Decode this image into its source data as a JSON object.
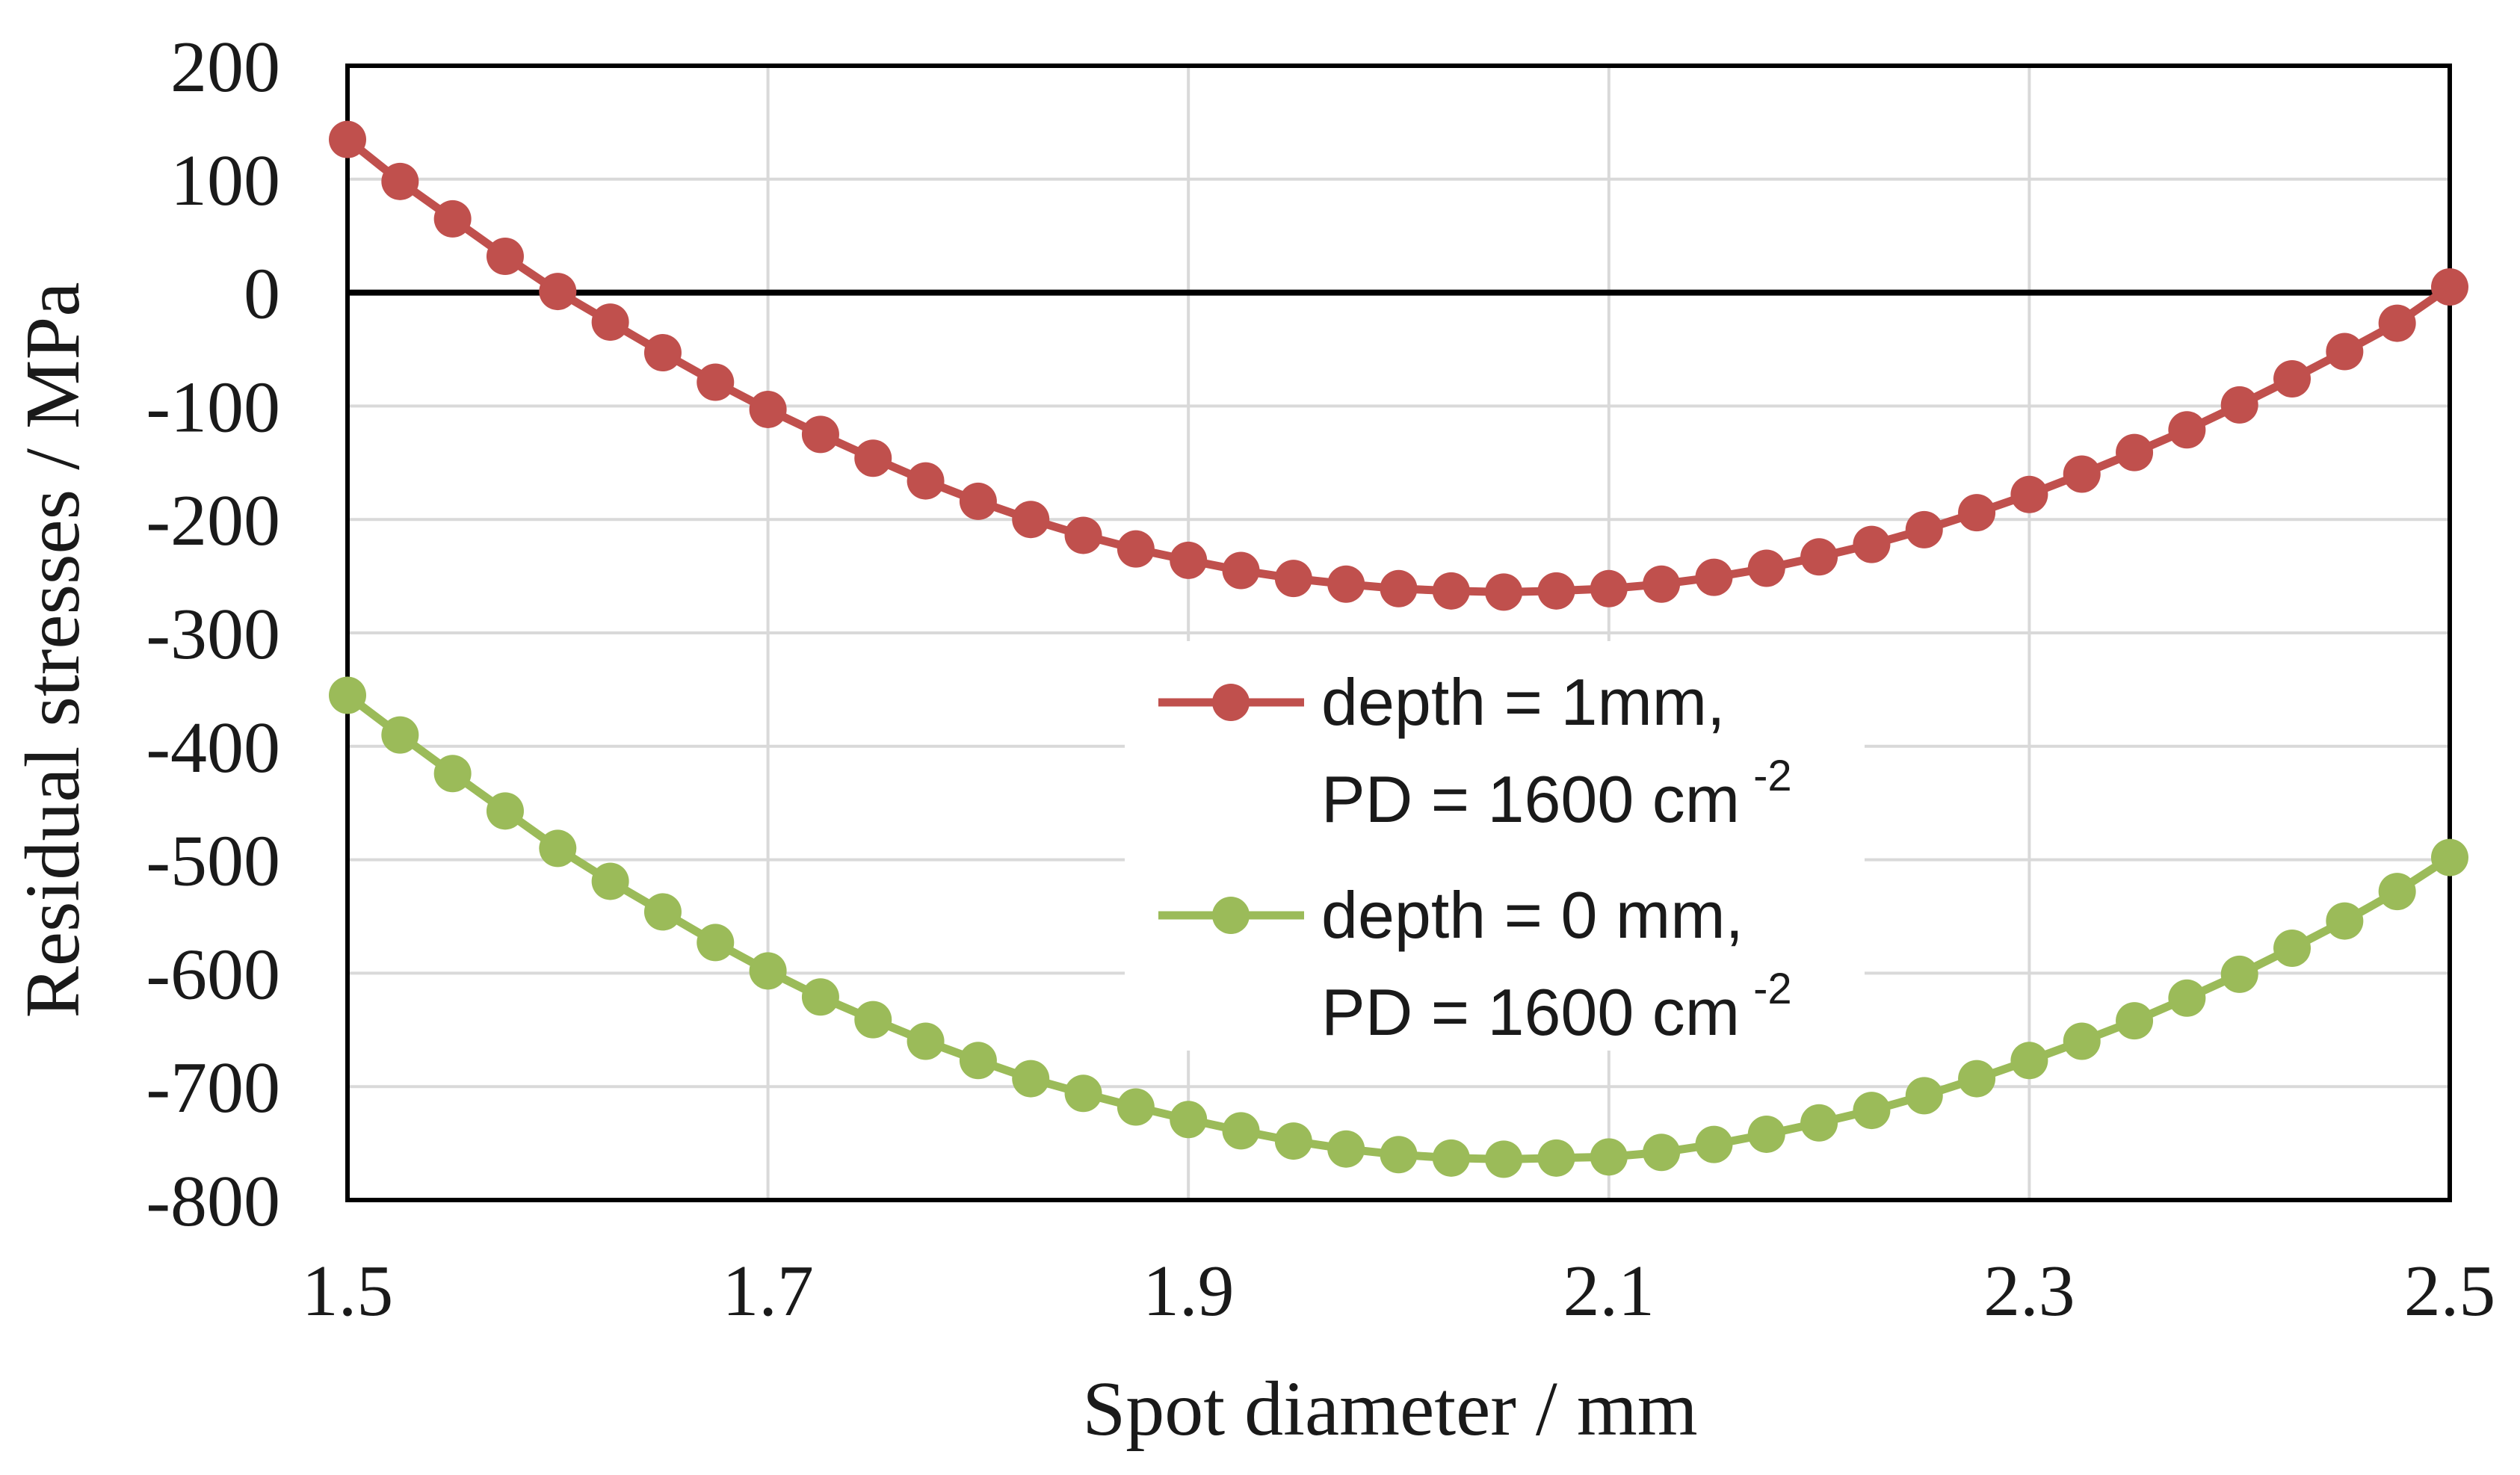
{
  "chart_data": {
    "type": "line",
    "xlabel": "Spot diameter  / mm",
    "ylabel": "Residual stresses  / MPa",
    "xlim": [
      1.5,
      2.5
    ],
    "ylim": [
      -800,
      200
    ],
    "x_ticks": [
      "1.5",
      "1.7",
      "1.9",
      "2.1",
      "2.3",
      "2.5"
    ],
    "y_ticks": [
      "200",
      "100",
      "0",
      "-100",
      "-200",
      "-300",
      "-400",
      "-500",
      "-600",
      "-700",
      "-800"
    ],
    "grid": true,
    "zero_line": true,
    "legend_position": "center",
    "x": [
      1.5,
      1.525,
      1.55,
      1.575,
      1.6,
      1.625,
      1.65,
      1.675,
      1.7,
      1.725,
      1.75,
      1.775,
      1.8,
      1.825,
      1.85,
      1.875,
      1.9,
      1.925,
      1.95,
      1.975,
      2.0,
      2.025,
      2.05,
      2.075,
      2.1,
      2.125,
      2.15,
      2.175,
      2.2,
      2.225,
      2.25,
      2.275,
      2.3,
      2.325,
      2.35,
      2.375,
      2.4,
      2.425,
      2.45,
      2.475,
      2.5
    ],
    "series": [
      {
        "label_line1": "depth = 1mm,",
        "label_line2": "PD = 1600 cm",
        "label_sup": "-2",
        "color": "#c0504d",
        "values": [
          135,
          98,
          65,
          32,
          1,
          -26,
          -53,
          -79,
          -103,
          -125,
          -146,
          -166,
          -184,
          -200,
          -214,
          -226,
          -236,
          -245,
          -252,
          -257,
          -261,
          -263,
          -264,
          -263,
          -261,
          -257,
          -251,
          -243,
          -233,
          -222,
          -209,
          -194,
          -178,
          -160,
          -141,
          -121,
          -99,
          -76,
          -52,
          -27,
          5
        ]
      },
      {
        "label_line1": "depth = 0 mm,",
        "label_line2": "PD = 1600 cm",
        "label_sup": "-2",
        "color": "#9bbb59",
        "values": [
          -355,
          -390,
          -424,
          -457,
          -490,
          -519,
          -546,
          -573,
          -598,
          -621,
          -641,
          -660,
          -677,
          -693,
          -706,
          -718,
          -729,
          -739,
          -748,
          -755,
          -760,
          -763,
          -764,
          -763,
          -762,
          -758,
          -751,
          -742,
          -732,
          -721,
          -708,
          -693,
          -677,
          -660,
          -642,
          -622,
          -601,
          -578,
          -554,
          -528,
          -498
        ]
      }
    ]
  }
}
